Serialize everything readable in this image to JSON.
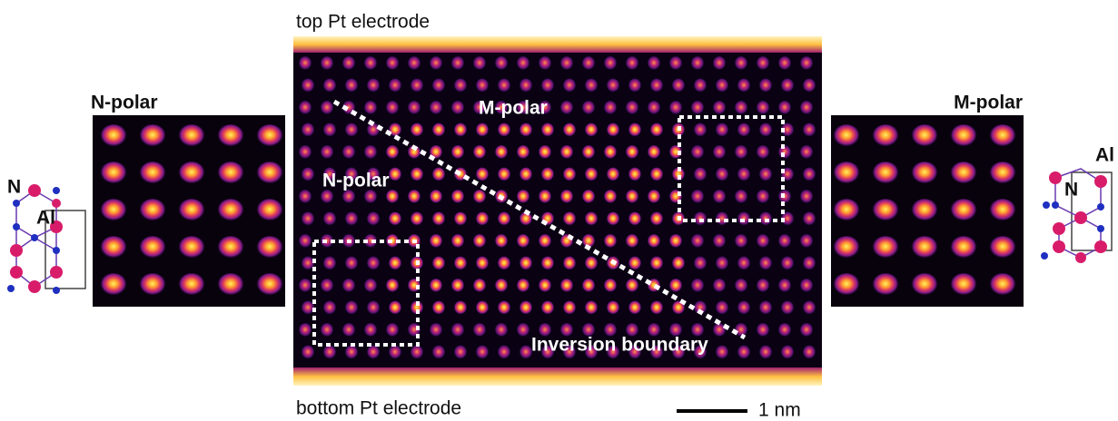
{
  "center_image": {
    "top_label": "top Pt electrode",
    "bottom_label": "bottom Pt electrode",
    "regions": [
      "N-polar",
      "M-polar"
    ],
    "boundary_label": "Inversion boundary",
    "scale_bar": "1 nm"
  },
  "left_panel": {
    "title": "N-polar",
    "structure_labels": [
      "N",
      "Al"
    ]
  },
  "right_panel": {
    "title": "M-polar",
    "structure_labels": [
      "Al",
      "N"
    ]
  }
}
